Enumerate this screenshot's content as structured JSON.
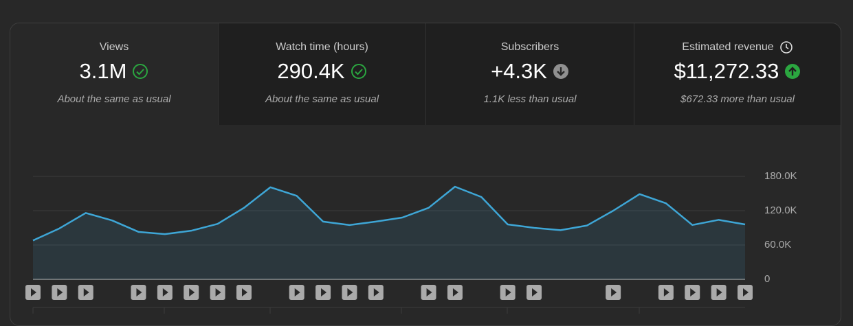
{
  "cards": [
    {
      "title": "Views",
      "value": "3.1M",
      "note": "About the same as usual"
    },
    {
      "title": "Watch time (hours)",
      "value": "290.4K",
      "note": "About the same as usual"
    },
    {
      "title": "Subscribers",
      "value": "+4.3K",
      "note": "1.1K less than usual"
    },
    {
      "title": "Estimated revenue",
      "value": "$11,272.33",
      "note": "$672.33 more than usual"
    }
  ],
  "chart_data": {
    "type": "line",
    "categories": [
      null,
      null,
      null,
      null,
      null,
      null,
      null,
      null,
      null,
      null,
      null,
      null,
      null,
      null,
      null,
      null,
      null,
      null,
      null,
      null,
      null,
      null,
      null,
      null,
      null,
      null,
      null,
      null
    ],
    "values": [
      68000,
      89000,
      116000,
      103000,
      83000,
      79000,
      85000,
      97000,
      125000,
      161000,
      146000,
      101000,
      95000,
      101000,
      108000,
      125000,
      162000,
      144000,
      96000,
      90000,
      86000,
      94000,
      120000,
      149000,
      133000,
      95000,
      104000,
      96000
    ],
    "color": "#3ea6d6",
    "ylim": [
      0,
      180000
    ],
    "yticks": [
      0,
      {
        "value": 60000,
        "label": "60.0K"
      },
      {
        "value": 120000,
        "label": "120.0K"
      },
      {
        "value": 180000,
        "label": "180.0K"
      }
    ],
    "grid": true
  }
}
